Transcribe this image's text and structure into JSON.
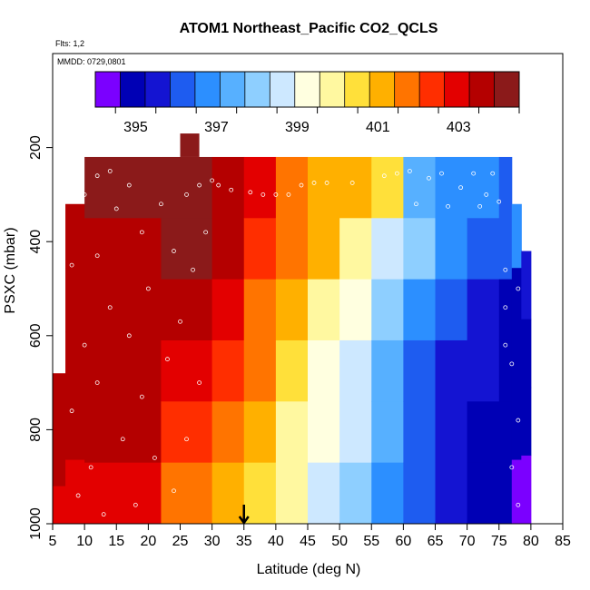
{
  "chart_data": {
    "type": "heatmap",
    "title": "ATOM1 Northeast_Pacific CO2_QCLS",
    "flights_label": "Flts: 1,2",
    "date_label": "MMDD: 0729,0801",
    "xlabel": "Latitude (deg N)",
    "ylabel": "PSXC (mbar)",
    "xlim": [
      5,
      85
    ],
    "ylim": [
      1000,
      0
    ],
    "x_ticks": [
      5,
      10,
      15,
      20,
      25,
      30,
      35,
      40,
      45,
      50,
      55,
      60,
      65,
      70,
      75,
      80,
      85
    ],
    "y_ticks": [
      200,
      400,
      600,
      800,
      1000
    ],
    "colorbar": {
      "min": 394,
      "max": 404.5,
      "ticks": [
        395,
        397,
        399,
        401,
        403
      ],
      "tick_labels": [
        "395",
        "397",
        "399",
        "401",
        "403"
      ],
      "colors": [
        "#7b00ff",
        "#0000b5",
        "#1414d2",
        "#1e5cf0",
        "#2c8fff",
        "#57b0ff",
        "#8ecfff",
        "#cde8ff",
        "#ffffe0",
        "#fff8a0",
        "#ffe03a",
        "#ffb000",
        "#ff7400",
        "#ff2e00",
        "#e30000",
        "#b40000",
        "#8b1a1a"
      ]
    },
    "arrow_latitude": 35,
    "columns": [
      {
        "lat_start": 5,
        "lat_end": 7,
        "p_top": 680,
        "values": [
          403.8,
          403.5,
          403.3,
          403.0
        ]
      },
      {
        "lat_start": 7,
        "lat_end": 10,
        "p_top": 320,
        "values": [
          403.8,
          403.6,
          403.5,
          403.3,
          403.0
        ]
      },
      {
        "lat_start": 10,
        "lat_end": 22,
        "p_top": 220,
        "values": [
          403.9,
          403.8,
          403.6,
          403.5,
          403.3,
          403.0
        ]
      },
      {
        "lat_start": 22,
        "lat_end": 30,
        "p_top": 220,
        "values": [
          404.2,
          404.2,
          403.8,
          403.2,
          402.5,
          401.8
        ]
      },
      {
        "lat_start": 30,
        "lat_end": 35,
        "p_top": 220,
        "values": [
          403.5,
          403.5,
          403.0,
          402.4,
          401.8,
          401.2
        ]
      },
      {
        "lat_start": 35,
        "lat_end": 40,
        "p_top": 220,
        "values": [
          402.8,
          402.6,
          402.0,
          401.5,
          401.0,
          400.5
        ]
      },
      {
        "lat_start": 40,
        "lat_end": 45,
        "p_top": 220,
        "values": [
          401.9,
          401.6,
          401.0,
          400.5,
          400.0,
          399.7
        ]
      },
      {
        "lat_start": 45,
        "lat_end": 50,
        "p_top": 220,
        "values": [
          401.2,
          400.8,
          400.0,
          399.5,
          399.2,
          398.9
        ]
      },
      {
        "lat_start": 50,
        "lat_end": 55,
        "p_top": 220,
        "values": [
          400.8,
          399.8,
          399.0,
          398.6,
          398.4,
          398.0
        ]
      },
      {
        "lat_start": 55,
        "lat_end": 60,
        "p_top": 220,
        "values": [
          400.4,
          398.8,
          397.9,
          397.5,
          397.2,
          396.9
        ]
      },
      {
        "lat_start": 60,
        "lat_end": 65,
        "p_top": 220,
        "values": [
          397.5,
          398.0,
          396.6,
          396.4,
          396.2,
          396.0
        ]
      },
      {
        "lat_start": 65,
        "lat_end": 70,
        "p_top": 220,
        "values": [
          396.5,
          397.0,
          395.9,
          395.8,
          395.7,
          395.6
        ]
      },
      {
        "lat_start": 70,
        "lat_end": 75,
        "p_top": 220,
        "values": [
          396.8,
          396.2,
          395.4,
          395.3,
          395.2,
          395.1
        ]
      },
      {
        "lat_start": 75,
        "lat_end": 77,
        "p_top": 220,
        "values": [
          396.0,
          396.0,
          395.2,
          395.0,
          395.0,
          394.8
        ]
      },
      {
        "lat_start": 77,
        "lat_end": 78.5,
        "p_top": 320,
        "values": [
          396.8,
          395.0,
          395.0,
          394.8,
          394.5
        ]
      },
      {
        "lat_start": 78.5,
        "lat_end": 80,
        "p_top": 420,
        "values": [
          395.5,
          395.0,
          395.0,
          394.3
        ]
      }
    ],
    "top_patch": {
      "lat_start": 25,
      "lat_end": 28,
      "p_top": 170,
      "p_bottom": 220,
      "value": 403.9
    },
    "points": [
      [
        8,
        450
      ],
      [
        8,
        760
      ],
      [
        9,
        940
      ],
      [
        10,
        300
      ],
      [
        10,
        620
      ],
      [
        11,
        880
      ],
      [
        12,
        260
      ],
      [
        12,
        430
      ],
      [
        12,
        700
      ],
      [
        13,
        980
      ],
      [
        14,
        250
      ],
      [
        14,
        540
      ],
      [
        15,
        330
      ],
      [
        16,
        820
      ],
      [
        17,
        280
      ],
      [
        17,
        600
      ],
      [
        18,
        960
      ],
      [
        19,
        380
      ],
      [
        19,
        730
      ],
      [
        20,
        500
      ],
      [
        21,
        860
      ],
      [
        22,
        215
      ],
      [
        22,
        320
      ],
      [
        23,
        650
      ],
      [
        24,
        420
      ],
      [
        24,
        930
      ],
      [
        25,
        570
      ],
      [
        26,
        300
      ],
      [
        26,
        820
      ],
      [
        27,
        460
      ],
      [
        28,
        280
      ],
      [
        28,
        700
      ],
      [
        29,
        380
      ],
      [
        30,
        270
      ],
      [
        31,
        280
      ],
      [
        33,
        290
      ],
      [
        36,
        295
      ],
      [
        38,
        300
      ],
      [
        40,
        300
      ],
      [
        42,
        300
      ],
      [
        44,
        280
      ],
      [
        46,
        275
      ],
      [
        48,
        275
      ],
      [
        52,
        275
      ],
      [
        57,
        260
      ],
      [
        59,
        255
      ],
      [
        61,
        250
      ],
      [
        62,
        320
      ],
      [
        64,
        265
      ],
      [
        66,
        255
      ],
      [
        67,
        325
      ],
      [
        69,
        285
      ],
      [
        71,
        255
      ],
      [
        72,
        325
      ],
      [
        73,
        300
      ],
      [
        74,
        255
      ],
      [
        75,
        315
      ],
      [
        76,
        460
      ],
      [
        76,
        620
      ],
      [
        77,
        660
      ],
      [
        77,
        880
      ],
      [
        78,
        500
      ],
      [
        78,
        780
      ],
      [
        78,
        960
      ],
      [
        76,
        540
      ]
    ]
  }
}
